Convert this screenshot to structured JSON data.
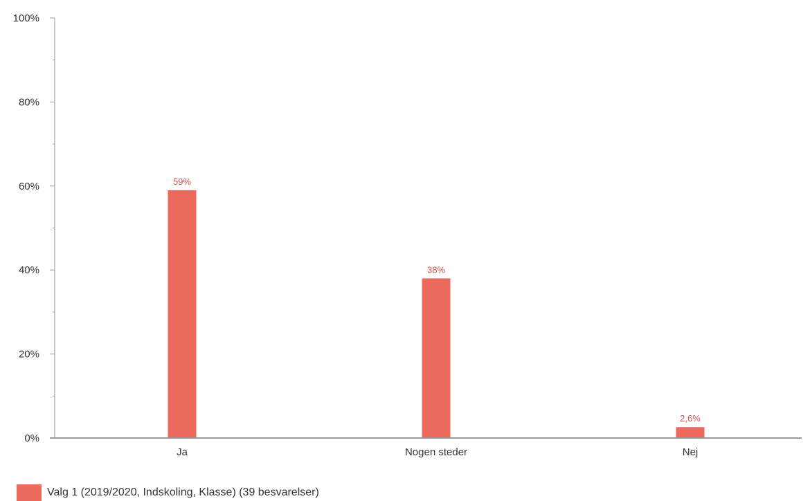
{
  "chart_data": {
    "type": "bar",
    "categories": [
      "Ja",
      "Nogen steder",
      "Nej"
    ],
    "series": [
      {
        "name": "Valg 1 (2019/2020, Indskoling, Klasse) (39 besvarelser)",
        "values": [
          59,
          38,
          2.6
        ],
        "data_labels": [
          "59%",
          "38%",
          "2,6%"
        ]
      }
    ],
    "y_ticks": [
      0,
      20,
      40,
      60,
      80,
      100
    ],
    "y_tick_labels": [
      "0%",
      "20%",
      "40%",
      "60%",
      "80%",
      "100%"
    ],
    "ylim": [
      0,
      100
    ],
    "grid": false,
    "legend_position": "bottom-left"
  },
  "colors": {
    "bar": "#ec6a5c",
    "label": "#d9534f",
    "axis": "#999999",
    "text": "#333333"
  }
}
